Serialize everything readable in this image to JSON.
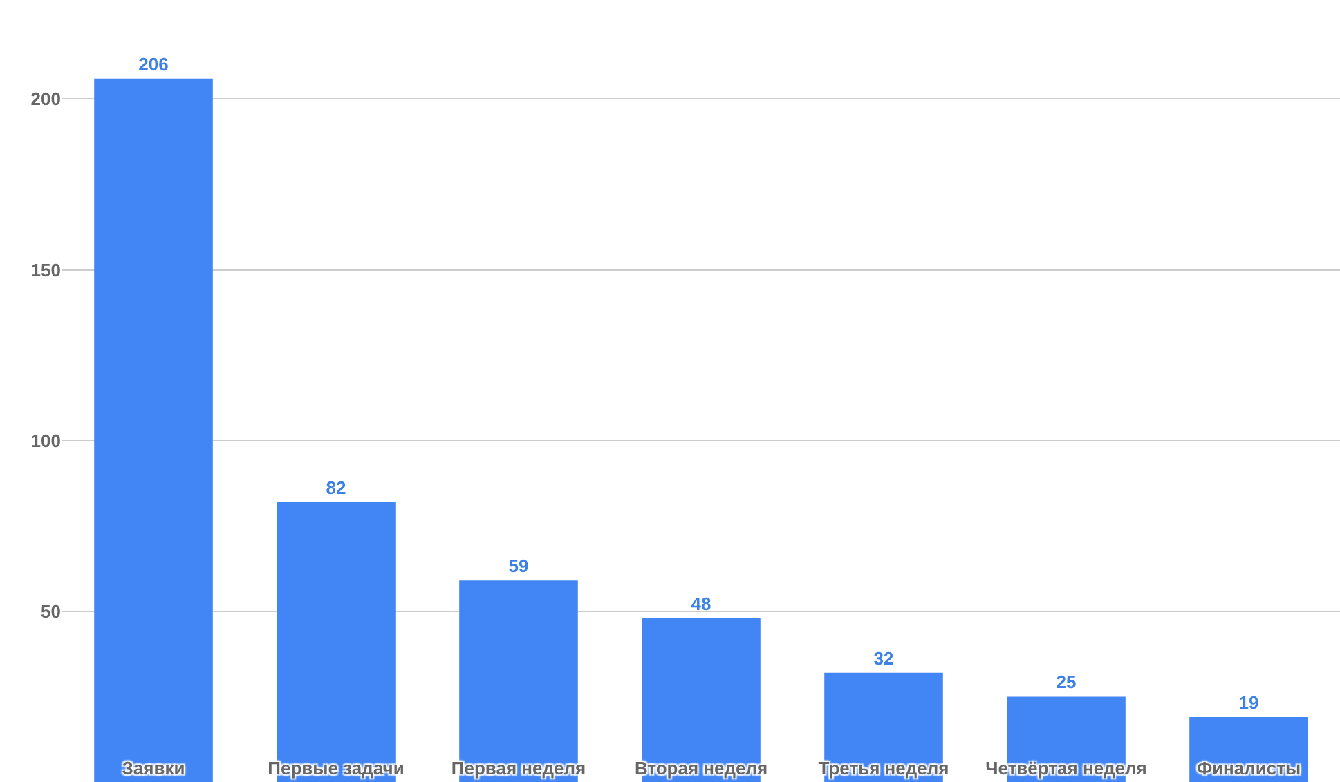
{
  "chart_data": {
    "type": "bar",
    "categories": [
      "Заявки",
      "Первые задачи",
      "Первая неделя",
      "Вторая неделя",
      "Третья неделя",
      "Четвёртая неделя",
      "Финалисты"
    ],
    "values": [
      206,
      82,
      59,
      48,
      32,
      25,
      19
    ],
    "color": "#4285f4",
    "ylim": [
      0,
      229
    ],
    "yticks": [
      50,
      100,
      150,
      200
    ],
    "grid": "y",
    "data_labels": true,
    "legend": false
  }
}
